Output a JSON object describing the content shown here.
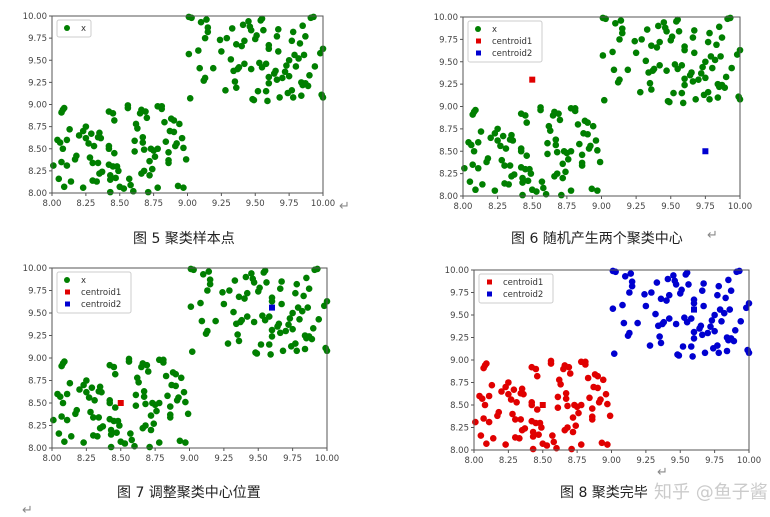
{
  "captions": [
    "图 5  聚类样本点",
    "图 6  随机产生两个聚类中心",
    "图 7  调整聚类中心位置",
    "图 8  聚类完毕"
  ],
  "return_mark": "↵",
  "watermark": "知乎 @鱼子酱",
  "colors": {
    "green": "#007f00",
    "red": "#e00000",
    "blue": "#0000d0"
  },
  "samples": {
    "lower": [
      [
        8.01,
        8.31
      ],
      [
        8.04,
        8.6
      ],
      [
        8.06,
        8.57
      ],
      [
        8.05,
        8.16
      ],
      [
        8.07,
        8.35
      ],
      [
        8.07,
        8.91
      ],
      [
        8.08,
        8.94
      ],
      [
        8.09,
        8.96
      ],
      [
        8.08,
        8.5
      ],
      [
        8.09,
        8.07
      ],
      [
        8.11,
        8.31
      ],
      [
        8.11,
        8.6
      ],
      [
        8.13,
        8.72
      ],
      [
        8.14,
        8.13
      ],
      [
        8.17,
        8.38
      ],
      [
        8.18,
        8.42
      ],
      [
        8.2,
        8.65
      ],
      [
        8.23,
        8.06
      ],
      [
        8.23,
        8.7
      ],
      [
        8.25,
        8.75
      ],
      [
        8.25,
        8.62
      ],
      [
        8.27,
        8.56
      ],
      [
        8.28,
        8.4
      ],
      [
        8.29,
        8.67
      ],
      [
        8.3,
        8.14
      ],
      [
        8.3,
        8.34
      ],
      [
        8.31,
        8.53
      ],
      [
        8.33,
        8.13
      ],
      [
        8.34,
        8.34
      ],
      [
        8.34,
        8.63
      ],
      [
        8.35,
        8.68
      ],
      [
        8.35,
        8.22
      ],
      [
        8.36,
        8.62
      ],
      [
        8.37,
        8.24
      ],
      [
        8.42,
        8.92
      ],
      [
        8.42,
        8.53
      ],
      [
        8.42,
        8.5
      ],
      [
        8.42,
        8.32
      ],
      [
        8.43,
        8.2
      ],
      [
        8.43,
        8.15
      ],
      [
        8.43,
        8.01
      ],
      [
        8.45,
        8.9
      ],
      [
        8.45,
        8.3
      ],
      [
        8.46,
        8.82
      ],
      [
        8.46,
        8.45
      ],
      [
        8.47,
        8.17
      ],
      [
        8.48,
        8.3
      ],
      [
        8.49,
        8.25
      ],
      [
        8.5,
        8.07
      ],
      [
        8.53,
        8.05
      ],
      [
        8.56,
        8.99
      ],
      [
        8.56,
        8.96
      ],
      [
        8.57,
        8.16
      ],
      [
        8.58,
        8.09
      ],
      [
        8.6,
        8.02
      ],
      [
        8.61,
        8.47
      ],
      [
        8.61,
        8.59
      ],
      [
        8.62,
        8.78
      ],
      [
        8.63,
        8.73
      ],
      [
        8.65,
        8.9
      ],
      [
        8.66,
        8.94
      ],
      [
        8.66,
        8.22
      ],
      [
        8.67,
        8.63
      ],
      [
        8.67,
        8.57
      ],
      [
        8.68,
        8.49
      ],
      [
        8.68,
        8.25
      ],
      [
        8.69,
        8.92
      ],
      [
        8.7,
        8.85
      ],
      [
        8.71,
        8.01
      ],
      [
        8.72,
        8.2
      ],
      [
        8.72,
        8.36
      ],
      [
        8.73,
        8.5
      ],
      [
        8.74,
        8.27
      ],
      [
        8.75,
        8.48
      ],
      [
        8.76,
        8.41
      ],
      [
        8.78,
        8.98
      ],
      [
        8.78,
        8.06
      ],
      [
        8.78,
        8.5
      ],
      [
        8.81,
        8.98
      ],
      [
        8.81,
        8.95
      ],
      [
        8.83,
        8.8
      ],
      [
        8.84,
        8.58
      ],
      [
        8.86,
        8.46
      ],
      [
        8.86,
        8.37
      ],
      [
        8.86,
        8.34
      ],
      [
        8.87,
        8.7
      ],
      [
        8.88,
        8.84
      ],
      [
        8.9,
        8.82
      ],
      [
        8.9,
        8.69
      ],
      [
        8.91,
        8.53
      ],
      [
        8.92,
        8.56
      ],
      [
        8.93,
        8.08
      ],
      [
        8.94,
        8.78
      ],
      [
        8.96,
        8.62
      ],
      [
        8.97,
        8.06
      ],
      [
        8.97,
        8.51
      ],
      [
        8.99,
        8.38
      ]
    ],
    "upper": [
      [
        9.01,
        9.57
      ],
      [
        9.02,
        9.07
      ],
      [
        9.01,
        9.99
      ],
      [
        9.03,
        9.98
      ],
      [
        9.08,
        9.61
      ],
      [
        9.09,
        9.41
      ],
      [
        9.1,
        9.93
      ],
      [
        9.12,
        9.27
      ],
      [
        9.13,
        9.3
      ],
      [
        9.13,
        9.75
      ],
      [
        9.14,
        9.96
      ],
      [
        9.15,
        9.87
      ],
      [
        9.15,
        9.82
      ],
      [
        9.19,
        9.41
      ],
      [
        9.24,
        9.73
      ],
      [
        9.25,
        9.6
      ],
      [
        9.28,
        9.16
      ],
      [
        9.29,
        9.75
      ],
      [
        9.32,
        9.51
      ],
      [
        9.33,
        9.86
      ],
      [
        9.34,
        9.38
      ],
      [
        9.35,
        9.26
      ],
      [
        9.36,
        9.19
      ],
      [
        9.36,
        9.68
      ],
      [
        9.37,
        9.4
      ],
      [
        9.38,
        9.42
      ],
      [
        9.4,
        9.66
      ],
      [
        9.41,
        9.9
      ],
      [
        9.42,
        9.72
      ],
      [
        9.42,
        9.46
      ],
      [
        9.45,
        9.94
      ],
      [
        9.46,
        9.88
      ],
      [
        9.47,
        9.84
      ],
      [
        9.47,
        9.4
      ],
      [
        9.48,
        9.06
      ],
      [
        9.49,
        9.05
      ],
      [
        9.5,
        9.74
      ],
      [
        9.51,
        9.78
      ],
      [
        9.52,
        9.15
      ],
      [
        9.53,
        9.47
      ],
      [
        9.54,
        9.95
      ],
      [
        9.55,
        9.97
      ],
      [
        9.55,
        9.42
      ],
      [
        9.56,
        9.84
      ],
      [
        9.58,
        9.46
      ],
      [
        9.58,
        9.15
      ],
      [
        9.59,
        9.04
      ],
      [
        9.6,
        9.31
      ],
      [
        9.6,
        9.63
      ],
      [
        9.6,
        9.67
      ],
      [
        9.6,
        9.24
      ],
      [
        9.64,
        9.35
      ],
      [
        9.65,
        9.38
      ],
      [
        9.66,
        9.77
      ],
      [
        9.66,
        9.28
      ],
      [
        9.67,
        9.85
      ],
      [
        9.67,
        9.6
      ],
      [
        9.68,
        9.08
      ],
      [
        9.7,
        9.3
      ],
      [
        9.72,
        9.37
      ],
      [
        9.73,
        9.44
      ],
      [
        9.74,
        9.13
      ],
      [
        9.75,
        9.5
      ],
      [
        9.75,
        9.32
      ],
      [
        9.77,
        9.72
      ],
      [
        9.77,
        9.16
      ],
      [
        9.78,
        9.82
      ],
      [
        9.78,
        9.08
      ],
      [
        9.79,
        9.56
      ],
      [
        9.8,
        9.43
      ],
      [
        9.82,
        9.52
      ],
      [
        9.83,
        9.69
      ],
      [
        9.84,
        9.25
      ],
      [
        9.84,
        9.1
      ],
      [
        9.85,
        9.22
      ],
      [
        9.85,
        9.89
      ],
      [
        9.86,
        9.56
      ],
      [
        9.87,
        9.77
      ],
      [
        9.87,
        9.24
      ],
      [
        9.89,
        9.21
      ],
      [
        9.9,
        9.33
      ],
      [
        9.91,
        9.98
      ],
      [
        9.93,
        9.99
      ],
      [
        9.94,
        9.43
      ],
      [
        9.98,
        9.58
      ],
      [
        9.99,
        9.11
      ],
      [
        10.0,
        9.08
      ],
      [
        10.0,
        9.63
      ]
    ]
  },
  "chart_data": [
    {
      "type": "scatter",
      "xlim": [
        8,
        10
      ],
      "ylim": [
        8,
        10
      ],
      "grid": false,
      "legend_position": "top-left",
      "xticks": [
        "8.00",
        "8.25",
        "8.50",
        "8.75",
        "9.00",
        "9.25",
        "9.50",
        "9.75",
        "10.00"
      ],
      "yticks": [
        "8.00",
        "8.25",
        "8.50",
        "8.75",
        "9.00",
        "9.25",
        "9.50",
        "9.75",
        "10.00"
      ],
      "series": [
        {
          "name": "x",
          "points": [
            "lower",
            "upper"
          ],
          "color": "green",
          "marker": "circle"
        }
      ]
    },
    {
      "type": "scatter",
      "xlim": [
        8,
        10
      ],
      "ylim": [
        8,
        10
      ],
      "grid": false,
      "legend_position": "top-left",
      "xticks": [
        "8.00",
        "8.25",
        "8.50",
        "8.75",
        "9.00",
        "9.25",
        "9.50",
        "9.75",
        "10.00"
      ],
      "yticks": [
        "8.00",
        "8.25",
        "8.50",
        "8.75",
        "9.00",
        "9.25",
        "9.50",
        "9.75",
        "10.00"
      ],
      "series": [
        {
          "name": "x",
          "points": [
            "lower",
            "upper"
          ],
          "color": "green",
          "marker": "circle"
        },
        {
          "name": "centroid1",
          "xy": [
            [
              8.5,
              9.3
            ]
          ],
          "color": "red",
          "marker": "square"
        },
        {
          "name": "centroid2",
          "xy": [
            [
              9.75,
              8.5
            ]
          ],
          "color": "blue",
          "marker": "square"
        }
      ]
    },
    {
      "type": "scatter",
      "xlim": [
        8,
        10
      ],
      "ylim": [
        8,
        10
      ],
      "grid": false,
      "legend_position": "top-left",
      "xticks": [
        "8.00",
        "8.25",
        "8.50",
        "8.75",
        "9.00",
        "9.25",
        "9.50",
        "9.75",
        "10.00"
      ],
      "yticks": [
        "8.00",
        "8.25",
        "8.50",
        "8.75",
        "9.00",
        "9.25",
        "9.50",
        "9.75",
        "10.00"
      ],
      "series": [
        {
          "name": "x",
          "points": [
            "lower",
            "upper"
          ],
          "color": "green",
          "marker": "circle"
        },
        {
          "name": "centroid1",
          "xy": [
            [
              8.5,
              8.5
            ]
          ],
          "color": "red",
          "marker": "square"
        },
        {
          "name": "centroid2",
          "xy": [
            [
              9.6,
              9.56
            ]
          ],
          "color": "blue",
          "marker": "square"
        }
      ]
    },
    {
      "type": "scatter",
      "xlim": [
        8,
        10
      ],
      "ylim": [
        8,
        10
      ],
      "grid": false,
      "legend_position": "top-left",
      "xticks": [
        "8.00",
        "8.25",
        "8.50",
        "8.75",
        "9.00",
        "9.25",
        "9.50",
        "9.75",
        "10.00"
      ],
      "yticks": [
        "8.00",
        "8.25",
        "8.50",
        "8.75",
        "9.00",
        "9.25",
        "9.50",
        "9.75",
        "10.00"
      ],
      "series": [
        {
          "points": [
            "lower"
          ],
          "color": "red",
          "marker": "circle"
        },
        {
          "points": [
            "upper"
          ],
          "color": "blue",
          "marker": "circle"
        },
        {
          "name": "centroid1",
          "xy": [
            [
              8.5,
              8.5
            ]
          ],
          "color": "red",
          "marker": "square"
        },
        {
          "name": "centroid2",
          "xy": [
            [
              9.6,
              9.56
            ]
          ],
          "color": "blue",
          "marker": "square"
        }
      ]
    }
  ]
}
